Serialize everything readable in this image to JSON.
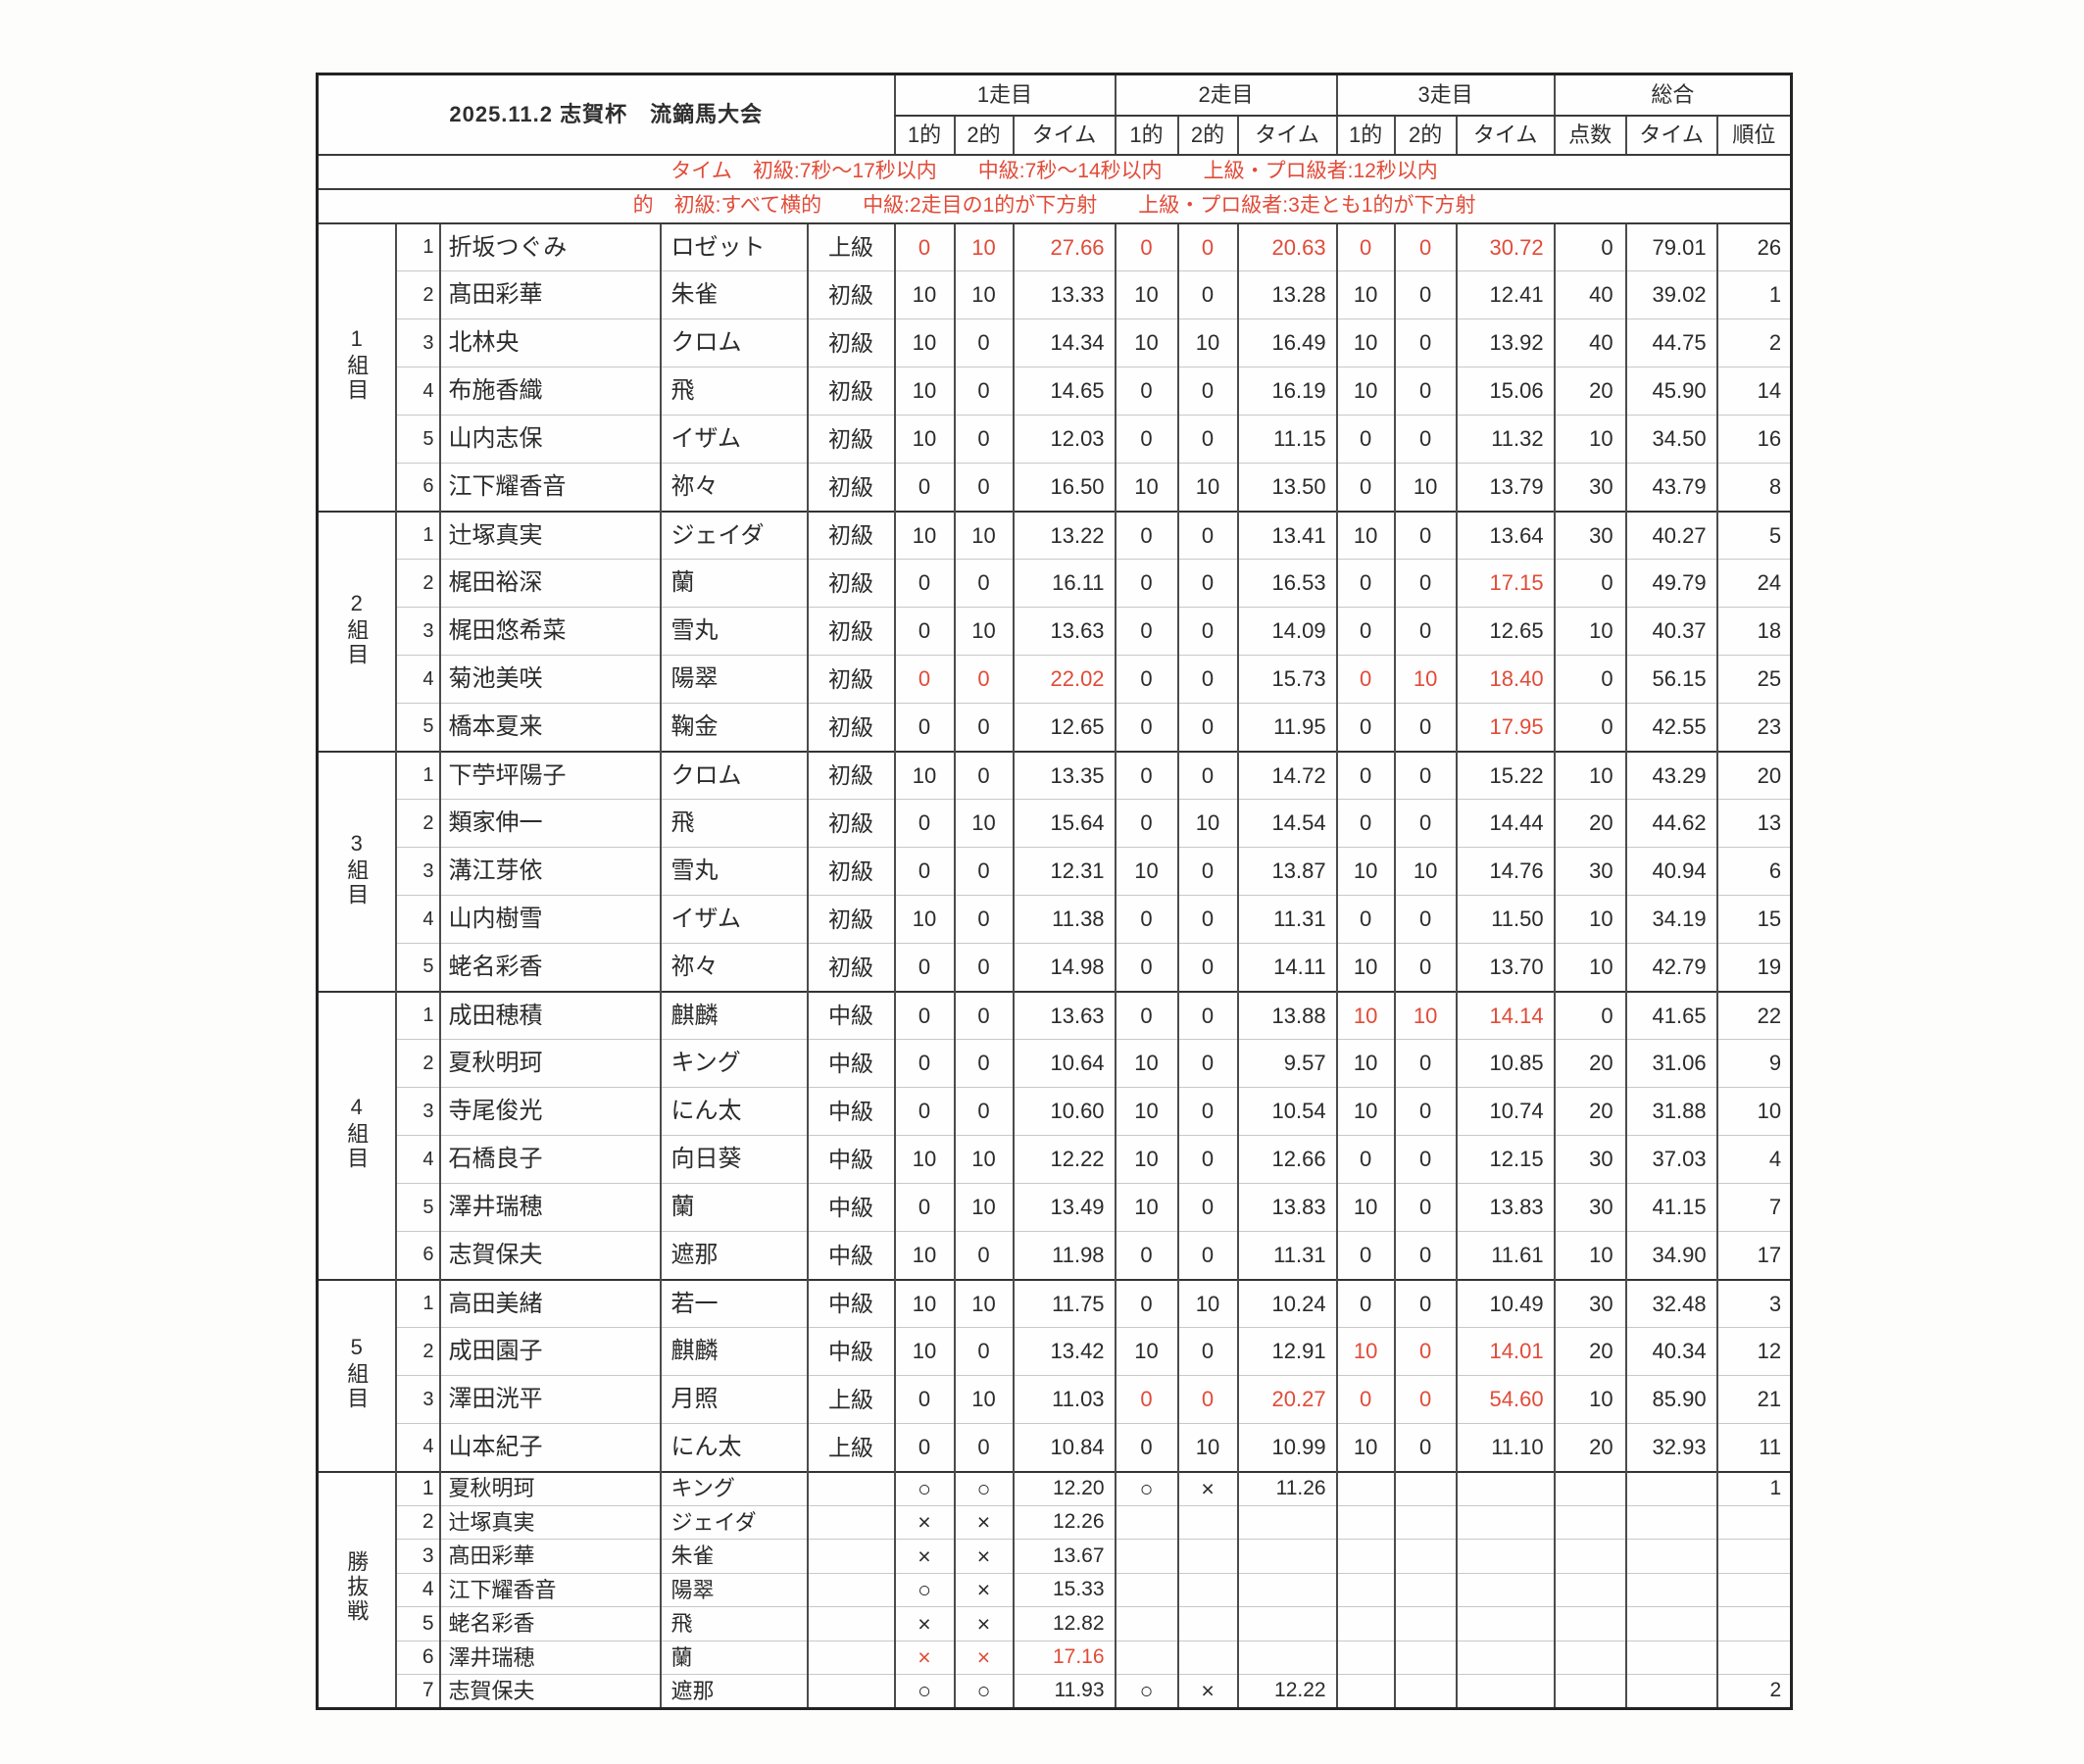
{
  "title": "2025.11.2 志賀杯　流鏑馬大会",
  "colors": {
    "accent_red": "#e14b38",
    "ink": "#2b2b2b"
  },
  "header": {
    "runs": [
      "1走目",
      "2走目",
      "3走目",
      "総合"
    ],
    "cols": [
      "1的",
      "2的",
      "タイム"
    ],
    "total_cols": [
      "点数",
      "タイム",
      "順位"
    ]
  },
  "notes": [
    "タイム　初級:7秒〜17秒以内　　中級:7秒〜14秒以内　　上級・プロ級者:12秒以内",
    "的　初級:すべて横的　　中級:2走目の1的が下方射　　上級・プロ級者:3走とも1的が下方射"
  ],
  "groups": [
    {
      "label": "1組目",
      "rows": [
        {
          "no": "1",
          "name": "折坂つぐみ",
          "horse": "ロゼット",
          "level": "上級",
          "r1": [
            "0",
            "10",
            "27.66"
          ],
          "r2": [
            "0",
            "0",
            "20.63"
          ],
          "r3": [
            "0",
            "0",
            "30.72"
          ],
          "pts": "0",
          "time": "79.01",
          "rank": "26",
          "red": {
            "r1": [
              0,
              1,
              2
            ],
            "r2": [
              0,
              1,
              2
            ],
            "r3": [
              0,
              1,
              2
            ]
          }
        },
        {
          "no": "2",
          "name": "髙田彩華",
          "horse": "朱雀",
          "level": "初級",
          "r1": [
            "10",
            "10",
            "13.33"
          ],
          "r2": [
            "10",
            "0",
            "13.28"
          ],
          "r3": [
            "10",
            "0",
            "12.41"
          ],
          "pts": "40",
          "time": "39.02",
          "rank": "1"
        },
        {
          "no": "3",
          "name": "北林央",
          "horse": "クロム",
          "level": "初級",
          "r1": [
            "10",
            "0",
            "14.34"
          ],
          "r2": [
            "10",
            "10",
            "16.49"
          ],
          "r3": [
            "10",
            "0",
            "13.92"
          ],
          "pts": "40",
          "time": "44.75",
          "rank": "2"
        },
        {
          "no": "4",
          "name": "布施香織",
          "horse": "飛",
          "level": "初級",
          "r1": [
            "10",
            "0",
            "14.65"
          ],
          "r2": [
            "0",
            "0",
            "16.19"
          ],
          "r3": [
            "10",
            "0",
            "15.06"
          ],
          "pts": "20",
          "time": "45.90",
          "rank": "14"
        },
        {
          "no": "5",
          "name": "山内志保",
          "horse": "イザム",
          "level": "初級",
          "r1": [
            "10",
            "0",
            "12.03"
          ],
          "r2": [
            "0",
            "0",
            "11.15"
          ],
          "r3": [
            "0",
            "0",
            "11.32"
          ],
          "pts": "10",
          "time": "34.50",
          "rank": "16"
        },
        {
          "no": "6",
          "name": "江下耀香音",
          "horse": "祢々",
          "level": "初級",
          "r1": [
            "0",
            "0",
            "16.50"
          ],
          "r2": [
            "10",
            "10",
            "13.50"
          ],
          "r3": [
            "0",
            "10",
            "13.79"
          ],
          "pts": "30",
          "time": "43.79",
          "rank": "8"
        }
      ]
    },
    {
      "label": "2組目",
      "rows": [
        {
          "no": "1",
          "name": "辻塚真実",
          "horse": "ジェイダ",
          "level": "初級",
          "r1": [
            "10",
            "10",
            "13.22"
          ],
          "r2": [
            "0",
            "0",
            "13.41"
          ],
          "r3": [
            "10",
            "0",
            "13.64"
          ],
          "pts": "30",
          "time": "40.27",
          "rank": "5"
        },
        {
          "no": "2",
          "name": "梶田裕深",
          "horse": "蘭",
          "level": "初級",
          "r1": [
            "0",
            "0",
            "16.11"
          ],
          "r2": [
            "0",
            "0",
            "16.53"
          ],
          "r3": [
            "0",
            "0",
            "17.15"
          ],
          "pts": "0",
          "time": "49.79",
          "rank": "24",
          "red": {
            "r3": [
              2
            ]
          }
        },
        {
          "no": "3",
          "name": "梶田悠希菜",
          "horse": "雪丸",
          "level": "初級",
          "r1": [
            "0",
            "10",
            "13.63"
          ],
          "r2": [
            "0",
            "0",
            "14.09"
          ],
          "r3": [
            "0",
            "0",
            "12.65"
          ],
          "pts": "10",
          "time": "40.37",
          "rank": "18"
        },
        {
          "no": "4",
          "name": "菊池美咲",
          "horse": "陽翠",
          "level": "初級",
          "r1": [
            "0",
            "0",
            "22.02"
          ],
          "r2": [
            "0",
            "0",
            "15.73"
          ],
          "r3": [
            "0",
            "10",
            "18.40"
          ],
          "pts": "0",
          "time": "56.15",
          "rank": "25",
          "red": {
            "r1": [
              0,
              1,
              2
            ],
            "r3": [
              0,
              1,
              2
            ]
          }
        },
        {
          "no": "5",
          "name": "橋本夏来",
          "horse": "鞠金",
          "level": "初級",
          "r1": [
            "0",
            "0",
            "12.65"
          ],
          "r2": [
            "0",
            "0",
            "11.95"
          ],
          "r3": [
            "0",
            "0",
            "17.95"
          ],
          "pts": "0",
          "time": "42.55",
          "rank": "23",
          "red": {
            "r3": [
              2
            ]
          }
        }
      ]
    },
    {
      "label": "3組目",
      "rows": [
        {
          "no": "1",
          "name": "下苧坪陽子",
          "horse": "クロム",
          "level": "初級",
          "r1": [
            "10",
            "0",
            "13.35"
          ],
          "r2": [
            "0",
            "0",
            "14.72"
          ],
          "r3": [
            "0",
            "0",
            "15.22"
          ],
          "pts": "10",
          "time": "43.29",
          "rank": "20"
        },
        {
          "no": "2",
          "name": "類家伸一",
          "horse": "飛",
          "level": "初級",
          "r1": [
            "0",
            "10",
            "15.64"
          ],
          "r2": [
            "0",
            "10",
            "14.54"
          ],
          "r3": [
            "0",
            "0",
            "14.44"
          ],
          "pts": "20",
          "time": "44.62",
          "rank": "13"
        },
        {
          "no": "3",
          "name": "溝江芽依",
          "horse": "雪丸",
          "level": "初級",
          "r1": [
            "0",
            "0",
            "12.31"
          ],
          "r2": [
            "10",
            "0",
            "13.87"
          ],
          "r3": [
            "10",
            "10",
            "14.76"
          ],
          "pts": "30",
          "time": "40.94",
          "rank": "6"
        },
        {
          "no": "4",
          "name": "山内樹雪",
          "horse": "イザム",
          "level": "初級",
          "r1": [
            "10",
            "0",
            "11.38"
          ],
          "r2": [
            "0",
            "0",
            "11.31"
          ],
          "r3": [
            "0",
            "0",
            "11.50"
          ],
          "pts": "10",
          "time": "34.19",
          "rank": "15"
        },
        {
          "no": "5",
          "name": "蛯名彩香",
          "horse": "祢々",
          "level": "初級",
          "r1": [
            "0",
            "0",
            "14.98"
          ],
          "r2": [
            "0",
            "0",
            "14.11"
          ],
          "r3": [
            "10",
            "0",
            "13.70"
          ],
          "pts": "10",
          "time": "42.79",
          "rank": "19"
        }
      ]
    },
    {
      "label": "4組目",
      "rows": [
        {
          "no": "1",
          "name": "成田穂積",
          "horse": "麒麟",
          "level": "中級",
          "r1": [
            "0",
            "0",
            "13.63"
          ],
          "r2": [
            "0",
            "0",
            "13.88"
          ],
          "r3": [
            "10",
            "10",
            "14.14"
          ],
          "pts": "0",
          "time": "41.65",
          "rank": "22",
          "red": {
            "r3": [
              0,
              1,
              2
            ]
          }
        },
        {
          "no": "2",
          "name": "夏秋明珂",
          "horse": "キング",
          "level": "中級",
          "r1": [
            "0",
            "0",
            "10.64"
          ],
          "r2": [
            "10",
            "0",
            "9.57"
          ],
          "r3": [
            "10",
            "0",
            "10.85"
          ],
          "pts": "20",
          "time": "31.06",
          "rank": "9"
        },
        {
          "no": "3",
          "name": "寺尾俊光",
          "horse": "にん太",
          "level": "中級",
          "r1": [
            "0",
            "0",
            "10.60"
          ],
          "r2": [
            "10",
            "0",
            "10.54"
          ],
          "r3": [
            "10",
            "0",
            "10.74"
          ],
          "pts": "20",
          "time": "31.88",
          "rank": "10"
        },
        {
          "no": "4",
          "name": "石橋良子",
          "horse": "向日葵",
          "level": "中級",
          "r1": [
            "10",
            "10",
            "12.22"
          ],
          "r2": [
            "10",
            "0",
            "12.66"
          ],
          "r3": [
            "0",
            "0",
            "12.15"
          ],
          "pts": "30",
          "time": "37.03",
          "rank": "4"
        },
        {
          "no": "5",
          "name": "澤井瑞穂",
          "horse": "蘭",
          "level": "中級",
          "r1": [
            "0",
            "10",
            "13.49"
          ],
          "r2": [
            "10",
            "0",
            "13.83"
          ],
          "r3": [
            "10",
            "0",
            "13.83"
          ],
          "pts": "30",
          "time": "41.15",
          "rank": "7"
        },
        {
          "no": "6",
          "name": "志賀保夫",
          "horse": "遮那",
          "level": "中級",
          "r1": [
            "10",
            "0",
            "11.98"
          ],
          "r2": [
            "0",
            "0",
            "11.31"
          ],
          "r3": [
            "0",
            "0",
            "11.61"
          ],
          "pts": "10",
          "time": "34.90",
          "rank": "17"
        }
      ]
    },
    {
      "label": "5組目",
      "rows": [
        {
          "no": "1",
          "name": "高田美緒",
          "horse": "若一",
          "level": "中級",
          "r1": [
            "10",
            "10",
            "11.75"
          ],
          "r2": [
            "0",
            "10",
            "10.24"
          ],
          "r3": [
            "0",
            "0",
            "10.49"
          ],
          "pts": "30",
          "time": "32.48",
          "rank": "3"
        },
        {
          "no": "2",
          "name": "成田園子",
          "horse": "麒麟",
          "level": "中級",
          "r1": [
            "10",
            "0",
            "13.42"
          ],
          "r2": [
            "10",
            "0",
            "12.91"
          ],
          "r3": [
            "10",
            "0",
            "14.01"
          ],
          "pts": "20",
          "time": "40.34",
          "rank": "12",
          "red": {
            "r3": [
              0,
              1,
              2
            ]
          }
        },
        {
          "no": "3",
          "name": "澤田洸平",
          "horse": "月照",
          "level": "上級",
          "r1": [
            "0",
            "10",
            "11.03"
          ],
          "r2": [
            "0",
            "0",
            "20.27"
          ],
          "r3": [
            "0",
            "0",
            "54.60"
          ],
          "pts": "10",
          "time": "85.90",
          "rank": "21",
          "red": {
            "r2": [
              0,
              1,
              2
            ],
            "r3": [
              0,
              1,
              2
            ]
          }
        },
        {
          "no": "4",
          "name": "山本紀子",
          "horse": "にん太",
          "level": "上級",
          "r1": [
            "0",
            "0",
            "10.84"
          ],
          "r2": [
            "0",
            "10",
            "10.99"
          ],
          "r3": [
            "10",
            "0",
            "11.10"
          ],
          "pts": "20",
          "time": "32.93",
          "rank": "11"
        }
      ]
    },
    {
      "label": "勝抜戦",
      "playoff": true,
      "rows": [
        {
          "no": "1",
          "name": "夏秋明珂",
          "horse": "キング",
          "level": "",
          "r1": [
            "○",
            "○",
            "12.20"
          ],
          "r2": [
            "○",
            "×",
            "11.26"
          ],
          "r3": [
            "",
            "",
            ""
          ],
          "pts": "",
          "time": "",
          "rank": "1"
        },
        {
          "no": "2",
          "name": "辻塚真実",
          "horse": "ジェイダ",
          "level": "",
          "r1": [
            "×",
            "×",
            "12.26"
          ],
          "r2": [
            "",
            "",
            ""
          ],
          "r3": [
            "",
            "",
            ""
          ],
          "pts": "",
          "time": "",
          "rank": ""
        },
        {
          "no": "3",
          "name": "髙田彩華",
          "horse": "朱雀",
          "level": "",
          "r1": [
            "×",
            "×",
            "13.67"
          ],
          "r2": [
            "",
            "",
            ""
          ],
          "r3": [
            "",
            "",
            ""
          ],
          "pts": "",
          "time": "",
          "rank": ""
        },
        {
          "no": "4",
          "name": "江下耀香音",
          "horse": "陽翠",
          "level": "",
          "r1": [
            "○",
            "×",
            "15.33"
          ],
          "r2": [
            "",
            "",
            ""
          ],
          "r3": [
            "",
            "",
            ""
          ],
          "pts": "",
          "time": "",
          "rank": ""
        },
        {
          "no": "5",
          "name": "蛯名彩香",
          "horse": "飛",
          "level": "",
          "r1": [
            "×",
            "×",
            "12.82"
          ],
          "r2": [
            "",
            "",
            ""
          ],
          "r3": [
            "",
            "",
            ""
          ],
          "pts": "",
          "time": "",
          "rank": ""
        },
        {
          "no": "6",
          "name": "澤井瑞穂",
          "horse": "蘭",
          "level": "",
          "r1": [
            "×",
            "×",
            "17.16"
          ],
          "r2": [
            "",
            "",
            ""
          ],
          "r3": [
            "",
            "",
            ""
          ],
          "pts": "",
          "time": "",
          "rank": "",
          "red": {
            "r1": [
              0,
              1,
              2
            ]
          }
        },
        {
          "no": "7",
          "name": "志賀保夫",
          "horse": "遮那",
          "level": "",
          "r1": [
            "○",
            "○",
            "11.93"
          ],
          "r2": [
            "○",
            "×",
            "12.22"
          ],
          "r3": [
            "",
            "",
            ""
          ],
          "pts": "",
          "time": "",
          "rank": "2"
        }
      ]
    }
  ]
}
